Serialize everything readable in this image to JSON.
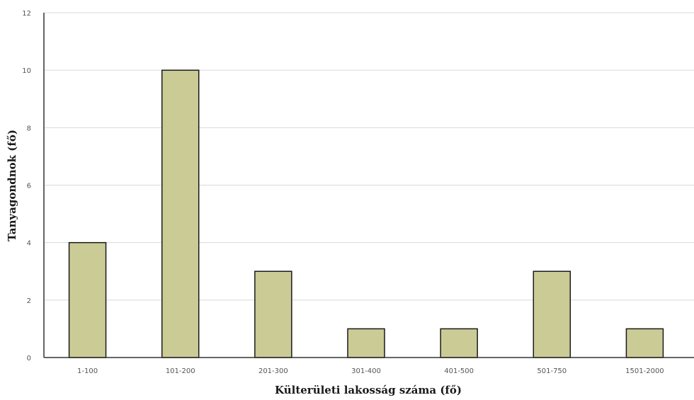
{
  "chart_data": {
    "type": "bar",
    "categories": [
      "1-100",
      "101-200",
      "201-300",
      "301-400",
      "401-500",
      "501-750",
      "1501-2000"
    ],
    "values": [
      4,
      10,
      3,
      1,
      1,
      3,
      1
    ],
    "xlabel": "Külterületi lakosság száma (fő)",
    "ylabel": "Tanyagondnok (fő)",
    "ylim": [
      0,
      12
    ],
    "yticks": [
      "0",
      "2",
      "4",
      "6",
      "8",
      "10",
      "12"
    ],
    "grid": true,
    "bar_color": "#cbcb96"
  }
}
